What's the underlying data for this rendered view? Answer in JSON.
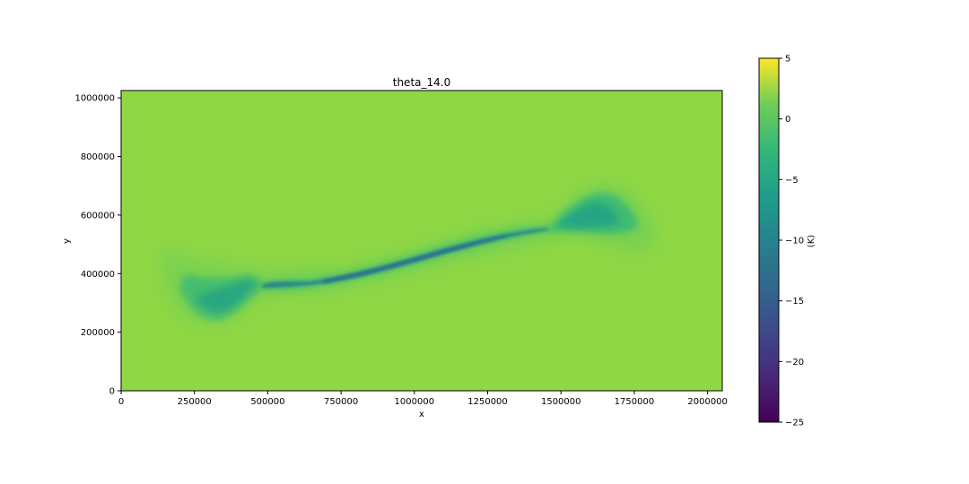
{
  "chart_data": {
    "type": "heatmap",
    "title": "theta_14.0",
    "xlabel": "x",
    "ylabel": "y",
    "xlim": [
      0,
      2050000
    ],
    "ylim": [
      0,
      1025000
    ],
    "xticks": [
      0,
      250000,
      500000,
      750000,
      1000000,
      1250000,
      1500000,
      1750000,
      2000000
    ],
    "xtick_labels": [
      "0",
      "250000",
      "500000",
      "750000",
      "1000000",
      "1250000",
      "1500000",
      "1750000",
      "2000000"
    ],
    "yticks": [
      0,
      200000,
      400000,
      600000,
      800000,
      1000000
    ],
    "ytick_labels": [
      "0",
      "200000",
      "400000",
      "600000",
      "800000",
      "1000000"
    ],
    "background_value": 0,
    "colormap": "viridis",
    "colorbar": {
      "label": "(K)",
      "vmin": -25,
      "vmax": 5,
      "ticks": [
        5,
        0,
        -5,
        -10,
        -15,
        -20,
        -25
      ],
      "tick_labels": [
        "5",
        "0",
        "−5",
        "−10",
        "−15",
        "−20",
        "−25"
      ]
    },
    "features": [
      {
        "name": "main-front",
        "path_x": [
          480000,
          700000,
          950000,
          1200000,
          1470000
        ],
        "path_y": [
          360000,
          380000,
          445000,
          510000,
          560000
        ],
        "min_value": -14
      },
      {
        "name": "southwest-lobe",
        "center_x": 270000,
        "center_y": 330000,
        "min_value": -7
      },
      {
        "name": "northeast-lobe",
        "center_x": 1620000,
        "center_y": 600000,
        "min_value": -8
      }
    ],
    "grid": false
  }
}
